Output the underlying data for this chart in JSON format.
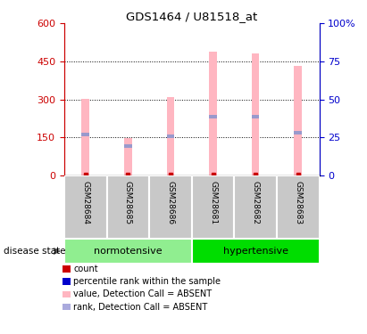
{
  "title": "GDS1464 / U81518_at",
  "samples": [
    "GSM28684",
    "GSM28685",
    "GSM28686",
    "GSM28681",
    "GSM28682",
    "GSM28683"
  ],
  "pink_bar_values": [
    302,
    148,
    308,
    488,
    483,
    433
  ],
  "blue_marker_values": [
    160,
    115,
    155,
    230,
    230,
    170
  ],
  "ylim_left": [
    0,
    600
  ],
  "ylim_right": [
    0,
    100
  ],
  "yticks_left": [
    0,
    150,
    300,
    450,
    600
  ],
  "ytick_labels_left": [
    "0",
    "150",
    "300",
    "450",
    "600"
  ],
  "yticks_right": [
    0,
    25,
    50,
    75,
    100
  ],
  "ytick_labels_right": [
    "0",
    "25",
    "50",
    "75",
    "100%"
  ],
  "pink_color": "#FFB6C1",
  "blue_color": "#9999CC",
  "red_color": "#CC0000",
  "left_axis_color": "#CC0000",
  "right_axis_color": "#0000CC",
  "bar_width": 0.18,
  "normotensive_color": "#90EE90",
  "hypertensive_color": "#00DD00",
  "sample_label_bg": "#C8C8C8",
  "disease_state_label": "disease state",
  "normotensive_label": "normotensive",
  "hypertensive_label": "hypertensive",
  "legend_items": [
    {
      "label": "count",
      "color": "#CC0000"
    },
    {
      "label": "percentile rank within the sample",
      "color": "#0000CC"
    },
    {
      "label": "value, Detection Call = ABSENT",
      "color": "#FFB6C1"
    },
    {
      "label": "rank, Detection Call = ABSENT",
      "color": "#AAAADD"
    }
  ]
}
